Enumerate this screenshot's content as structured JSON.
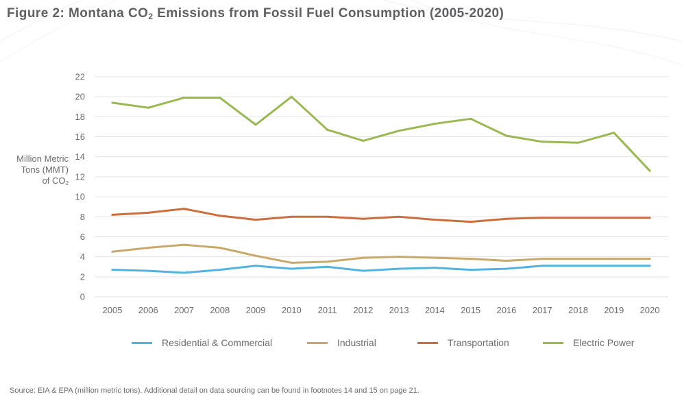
{
  "title": {
    "prefix": "Figure 2: Montana CO",
    "sub": "2",
    "suffix": " Emissions from Fossil Fuel Consumption (2005-2020)"
  },
  "y_axis_label": {
    "line1": "Million Metric",
    "line2": "Tons (MMT)",
    "line3_prefix": "of CO",
    "line3_sub": "2"
  },
  "source": "Source: EIA & EPA (million metric tons). Additional detail on data sourcing can be found in footnotes 14 and 15 on page 21.",
  "colors": {
    "residential": "#53b3e0",
    "industrial": "#c9a96a",
    "transportation": "#cc6e3c",
    "electric": "#9ab851",
    "grid": "#e2e2e2",
    "title": "#5f6064"
  },
  "chart_data": {
    "type": "line",
    "title": "Figure 2: Montana CO2 Emissions from Fossil Fuel Consumption (2005-2020)",
    "xlabel": "",
    "ylabel": "Million Metric Tons (MMT) of CO2",
    "ylim": [
      0,
      22
    ],
    "yticks": [
      0,
      2,
      4,
      6,
      8,
      10,
      12,
      14,
      16,
      18,
      20,
      22
    ],
    "grid": true,
    "legend_position": "bottom",
    "categories": [
      "2005",
      "2006",
      "2007",
      "2008",
      "2009",
      "2010",
      "2011",
      "2012",
      "2013",
      "2014",
      "2015",
      "2016",
      "2017",
      "2018",
      "2019",
      "2020"
    ],
    "series": [
      {
        "key": "residential",
        "name": "Residential & Commercial",
        "color": "#53b3e0",
        "values": [
          2.7,
          2.6,
          2.4,
          2.7,
          3.1,
          2.8,
          3.0,
          2.6,
          2.8,
          2.9,
          2.7,
          2.8,
          3.1,
          3.1,
          3.1,
          3.1
        ]
      },
      {
        "key": "industrial",
        "name": "Industrial",
        "color": "#c9a96a",
        "values": [
          4.5,
          4.9,
          5.2,
          4.9,
          4.1,
          3.4,
          3.5,
          3.9,
          4.0,
          3.9,
          3.8,
          3.6,
          3.8,
          3.8,
          3.8,
          3.8
        ]
      },
      {
        "key": "transportation",
        "name": "Transportation",
        "color": "#cc6e3c",
        "values": [
          8.2,
          8.4,
          8.8,
          8.1,
          7.7,
          8.0,
          8.0,
          7.8,
          8.0,
          7.7,
          7.5,
          7.8,
          7.9,
          7.9,
          7.9,
          7.9
        ]
      },
      {
        "key": "electric",
        "name": "Electric Power",
        "color": "#9ab851",
        "values": [
          19.4,
          18.9,
          19.9,
          19.9,
          17.2,
          20.0,
          16.7,
          15.6,
          16.6,
          17.3,
          17.8,
          16.1,
          15.5,
          15.4,
          16.4,
          12.6
        ]
      }
    ]
  }
}
